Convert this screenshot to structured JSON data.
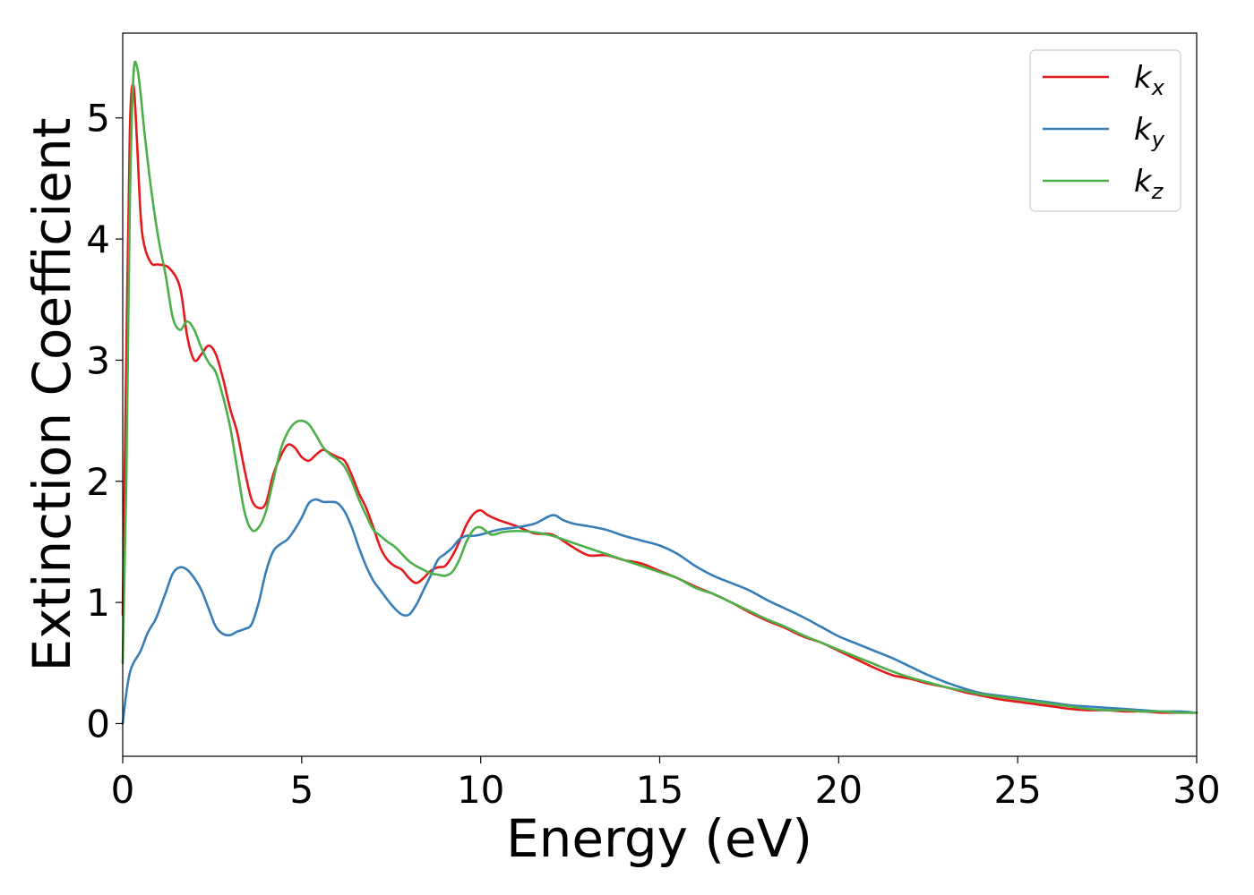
{
  "chart_data": {
    "type": "line",
    "title": "",
    "xlabel": "Energy (eV)",
    "ylabel": "Extinction Coefficient",
    "xlim": [
      0,
      30
    ],
    "ylim": [
      -0.27,
      5.7
    ],
    "xticks": [
      0,
      5,
      10,
      15,
      20,
      25,
      30
    ],
    "xtick_labels": [
      "0",
      "5",
      "10",
      "15",
      "20",
      "25",
      "30"
    ],
    "yticks": [
      0,
      1,
      2,
      3,
      4,
      5
    ],
    "ytick_labels": [
      "0",
      "1",
      "2",
      "3",
      "4",
      "5"
    ],
    "grid": false,
    "legend_position": "top-right",
    "series": [
      {
        "name": "k_x",
        "label_base": "k",
        "label_sub": "x",
        "color": "#e41a1c",
        "x": [
          0,
          0.1,
          0.2,
          0.3,
          0.4,
          0.5,
          0.6,
          0.8,
          1.0,
          1.3,
          1.6,
          1.8,
          2.0,
          2.2,
          2.4,
          2.6,
          2.8,
          3.0,
          3.2,
          3.4,
          3.6,
          3.8,
          4.0,
          4.2,
          4.4,
          4.6,
          4.8,
          5.0,
          5.2,
          5.4,
          5.6,
          5.8,
          6.0,
          6.2,
          6.4,
          6.6,
          6.8,
          7.0,
          7.2,
          7.4,
          7.6,
          7.8,
          8.0,
          8.2,
          8.4,
          8.6,
          8.8,
          9.0,
          9.2,
          9.4,
          9.6,
          9.8,
          10.0,
          10.2,
          10.5,
          11.0,
          11.5,
          12.0,
          12.5,
          13.0,
          13.5,
          14.0,
          14.5,
          15.0,
          15.5,
          16.0,
          16.5,
          17.0,
          17.5,
          18.0,
          18.5,
          19.0,
          19.5,
          20.0,
          20.5,
          21.0,
          21.5,
          22.0,
          22.5,
          23.0,
          23.5,
          24.0,
          24.5,
          25.0,
          25.5,
          26.0,
          26.5,
          27.0,
          27.5,
          28.0,
          28.5,
          29.0,
          29.5,
          30.0
        ],
        "y": [
          0.9,
          3.0,
          4.9,
          5.27,
          4.8,
          4.2,
          3.95,
          3.8,
          3.79,
          3.76,
          3.6,
          3.2,
          3.0,
          3.05,
          3.12,
          3.05,
          2.85,
          2.6,
          2.4,
          2.1,
          1.85,
          1.78,
          1.82,
          2.05,
          2.2,
          2.3,
          2.28,
          2.2,
          2.17,
          2.22,
          2.26,
          2.23,
          2.2,
          2.17,
          2.05,
          1.9,
          1.78,
          1.62,
          1.45,
          1.35,
          1.3,
          1.27,
          1.2,
          1.16,
          1.2,
          1.26,
          1.29,
          1.3,
          1.38,
          1.5,
          1.64,
          1.73,
          1.76,
          1.72,
          1.68,
          1.63,
          1.57,
          1.56,
          1.47,
          1.39,
          1.39,
          1.35,
          1.32,
          1.26,
          1.2,
          1.13,
          1.07,
          1.0,
          0.92,
          0.85,
          0.79,
          0.72,
          0.67,
          0.6,
          0.53,
          0.46,
          0.4,
          0.37,
          0.33,
          0.3,
          0.26,
          0.23,
          0.2,
          0.18,
          0.16,
          0.14,
          0.12,
          0.11,
          0.11,
          0.1,
          0.1,
          0.09,
          0.09,
          0.09
        ]
      },
      {
        "name": "k_y",
        "label_base": "k",
        "label_sub": "y",
        "color": "#377eb8",
        "x": [
          0,
          0.1,
          0.2,
          0.3,
          0.5,
          0.7,
          0.9,
          1.0,
          1.2,
          1.4,
          1.6,
          1.8,
          2.0,
          2.2,
          2.4,
          2.6,
          2.8,
          3.0,
          3.2,
          3.4,
          3.6,
          3.8,
          4.0,
          4.2,
          4.4,
          4.6,
          4.8,
          5.0,
          5.2,
          5.4,
          5.6,
          5.8,
          6.0,
          6.2,
          6.4,
          6.6,
          6.8,
          7.0,
          7.2,
          7.4,
          7.6,
          7.8,
          8.0,
          8.2,
          8.4,
          8.6,
          8.8,
          9.0,
          9.2,
          9.4,
          9.6,
          9.8,
          10.0,
          10.5,
          11.0,
          11.5,
          12.0,
          12.3,
          12.6,
          13.0,
          13.5,
          14.0,
          14.5,
          15.0,
          15.5,
          16.0,
          16.5,
          17.0,
          17.5,
          18.0,
          18.5,
          19.0,
          19.5,
          20.0,
          20.5,
          21.0,
          21.5,
          22.0,
          22.5,
          23.0,
          23.5,
          24.0,
          24.5,
          25.0,
          25.5,
          26.0,
          26.5,
          27.0,
          27.5,
          28.0,
          28.5,
          29.0,
          29.5,
          30.0
        ],
        "y": [
          0.0,
          0.25,
          0.42,
          0.5,
          0.6,
          0.75,
          0.85,
          0.92,
          1.08,
          1.24,
          1.29,
          1.27,
          1.2,
          1.1,
          0.95,
          0.8,
          0.74,
          0.73,
          0.76,
          0.78,
          0.82,
          1.0,
          1.25,
          1.42,
          1.48,
          1.52,
          1.6,
          1.7,
          1.82,
          1.85,
          1.83,
          1.83,
          1.82,
          1.75,
          1.62,
          1.45,
          1.3,
          1.18,
          1.1,
          1.02,
          0.95,
          0.9,
          0.9,
          0.98,
          1.1,
          1.22,
          1.35,
          1.4,
          1.45,
          1.52,
          1.55,
          1.55,
          1.56,
          1.6,
          1.62,
          1.65,
          1.72,
          1.68,
          1.65,
          1.63,
          1.6,
          1.55,
          1.51,
          1.47,
          1.4,
          1.3,
          1.22,
          1.16,
          1.1,
          1.02,
          0.95,
          0.88,
          0.8,
          0.72,
          0.66,
          0.6,
          0.54,
          0.47,
          0.4,
          0.34,
          0.29,
          0.25,
          0.23,
          0.21,
          0.19,
          0.17,
          0.15,
          0.14,
          0.13,
          0.12,
          0.11,
          0.1,
          0.1,
          0.09
        ]
      },
      {
        "name": "k_z",
        "label_base": "k",
        "label_sub": "z",
        "color": "#4daf4a",
        "x": [
          0,
          0.1,
          0.2,
          0.3,
          0.4,
          0.5,
          0.6,
          0.8,
          1.0,
          1.2,
          1.4,
          1.6,
          1.8,
          2.0,
          2.2,
          2.4,
          2.6,
          2.8,
          3.0,
          3.2,
          3.4,
          3.6,
          3.8,
          4.0,
          4.2,
          4.4,
          4.6,
          4.8,
          5.0,
          5.2,
          5.4,
          5.6,
          5.8,
          6.0,
          6.2,
          6.4,
          6.6,
          6.8,
          7.0,
          7.2,
          7.4,
          7.6,
          7.8,
          8.0,
          8.2,
          8.4,
          8.6,
          8.8,
          9.0,
          9.2,
          9.4,
          9.6,
          9.8,
          10.0,
          10.3,
          10.6,
          11.0,
          11.5,
          12.0,
          12.5,
          13.0,
          13.5,
          14.0,
          14.5,
          15.0,
          15.5,
          16.0,
          16.5,
          17.0,
          17.5,
          18.0,
          18.5,
          19.0,
          19.5,
          20.0,
          20.5,
          21.0,
          21.5,
          22.0,
          22.5,
          23.0,
          23.5,
          24.0,
          24.5,
          25.0,
          25.5,
          26.0,
          26.5,
          27.0,
          27.5,
          28.0,
          28.5,
          29.0,
          29.5,
          30.0
        ],
        "y": [
          0.5,
          2.0,
          4.3,
          5.35,
          5.42,
          5.2,
          4.9,
          4.4,
          4.0,
          3.7,
          3.35,
          3.25,
          3.32,
          3.25,
          3.1,
          2.98,
          2.9,
          2.7,
          2.45,
          2.1,
          1.75,
          1.6,
          1.62,
          1.75,
          2.0,
          2.25,
          2.4,
          2.48,
          2.5,
          2.47,
          2.38,
          2.28,
          2.22,
          2.18,
          2.12,
          2.0,
          1.85,
          1.72,
          1.6,
          1.55,
          1.5,
          1.46,
          1.4,
          1.34,
          1.3,
          1.27,
          1.24,
          1.23,
          1.22,
          1.25,
          1.35,
          1.5,
          1.6,
          1.62,
          1.56,
          1.58,
          1.59,
          1.58,
          1.55,
          1.5,
          1.45,
          1.4,
          1.35,
          1.3,
          1.25,
          1.2,
          1.12,
          1.07,
          1.0,
          0.93,
          0.86,
          0.8,
          0.73,
          0.67,
          0.61,
          0.55,
          0.49,
          0.43,
          0.38,
          0.34,
          0.3,
          0.27,
          0.24,
          0.22,
          0.2,
          0.18,
          0.16,
          0.14,
          0.12,
          0.11,
          0.11,
          0.1,
          0.1,
          0.09,
          0.09
        ]
      }
    ]
  }
}
